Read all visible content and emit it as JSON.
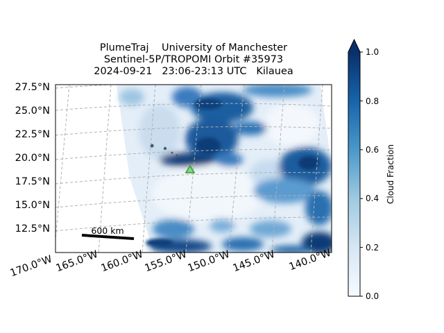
{
  "title": {
    "line1": "PlumeTraj    University of Manchester",
    "line2": "Sentinel-5P/TROPOMI Orbit #35973",
    "line3": "2024-09-21   23:06-23:13 UTC   Kilauea"
  },
  "map": {
    "lat_labels": [
      "27.5°N",
      "25.0°N",
      "22.5°N",
      "20.0°N",
      "17.5°N",
      "15.0°N",
      "12.5°N"
    ],
    "lon_labels": [
      "170.0°W",
      "165.0°W",
      "160.0°W",
      "155.0°W",
      "150.0°W",
      "145.0°W",
      "140.0°W"
    ],
    "scale_bar_label": "600 km",
    "volcano_marker": "triangle-icon",
    "volcano_color": "#2ca02c"
  },
  "colorbar": {
    "label": "Cloud Fraction",
    "ticks": [
      "0.0",
      "0.2",
      "0.4",
      "0.6",
      "0.8",
      "1.0"
    ],
    "extend": "max",
    "colormap": "Blues",
    "range": [
      0.0,
      1.0
    ]
  }
}
